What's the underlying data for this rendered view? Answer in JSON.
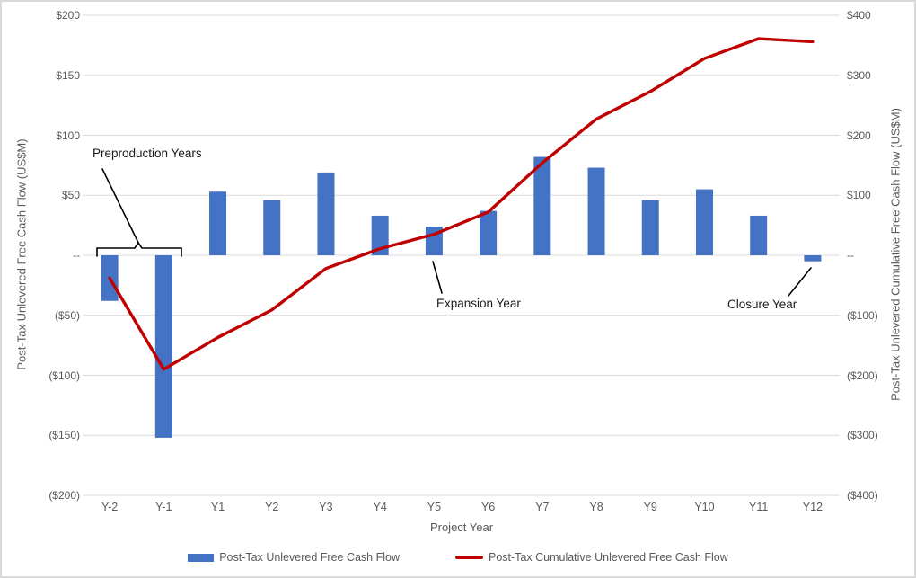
{
  "chart_data": {
    "type": "bar",
    "combo": "bar+line",
    "title": "",
    "categories": [
      "Y-2",
      "Y-1",
      "Y1",
      "Y2",
      "Y3",
      "Y4",
      "Y5",
      "Y6",
      "Y7",
      "Y8",
      "Y9",
      "Y10",
      "Y11",
      "Y12"
    ],
    "series": [
      {
        "name": "Post-Tax Unlevered Free Cash Flow",
        "type": "bar",
        "axis": "left",
        "values": [
          -38,
          -152,
          53,
          46,
          69,
          33,
          24,
          37,
          82,
          73,
          46,
          55,
          33,
          -5
        ]
      },
      {
        "name": "Post-Tax Cumulative Unlevered Free Cash Flow",
        "type": "line",
        "axis": "right",
        "values": [
          -38,
          -190,
          -137,
          -91,
          -22,
          11,
          35,
          72,
          154,
          227,
          273,
          328,
          361,
          356
        ]
      }
    ],
    "x_axis": {
      "title": "Project Year"
    },
    "left_axis": {
      "title": "Post-Tax Unlevered Free Cash Flow (US$M)",
      "range": [
        -200,
        200
      ],
      "ticks": [
        {
          "value": 200,
          "label": "$200"
        },
        {
          "value": 150,
          "label": "$150"
        },
        {
          "value": 100,
          "label": "$100"
        },
        {
          "value": 50,
          "label": "$50"
        },
        {
          "value": 0,
          "label": "--"
        },
        {
          "value": -50,
          "label": "($50)"
        },
        {
          "value": -100,
          "label": "($100)"
        },
        {
          "value": -150,
          "label": "($150)"
        },
        {
          "value": -200,
          "label": "($200)"
        }
      ]
    },
    "right_axis": {
      "title": "Post-Tax Unlevered Cumulative Free Cash Flow (US$M)",
      "range": [
        -400,
        400
      ],
      "ticks": [
        {
          "value": 400,
          "label": "$400"
        },
        {
          "value": 300,
          "label": "$300"
        },
        {
          "value": 200,
          "label": "$200"
        },
        {
          "value": 100,
          "label": "$100"
        },
        {
          "value": 0,
          "label": "--"
        },
        {
          "value": -100,
          "label": "($100)"
        },
        {
          "value": -200,
          "label": "($200)"
        },
        {
          "value": -300,
          "label": "($300)"
        },
        {
          "value": -400,
          "label": "($400)"
        }
      ]
    },
    "annotations": [
      {
        "text": "Preproduction Years",
        "target": "Y-2 and Y-1"
      },
      {
        "text": "Expansion Year",
        "target": "Y5"
      },
      {
        "text": "Closure Year",
        "target": "Y12"
      }
    ],
    "legend": [
      {
        "label": "Post-Tax Unlevered Free Cash Flow",
        "swatch": "bar"
      },
      {
        "label": "Post-Tax Cumulative Unlevered Free Cash Flow",
        "swatch": "line"
      }
    ],
    "legend_position": "bottom",
    "grid": true,
    "colors": {
      "bar": "#4472C4",
      "line": "#C00000",
      "gridline": "#D9D9D9",
      "tick_text": "#595959",
      "annotation": "#1a1a1a"
    }
  }
}
